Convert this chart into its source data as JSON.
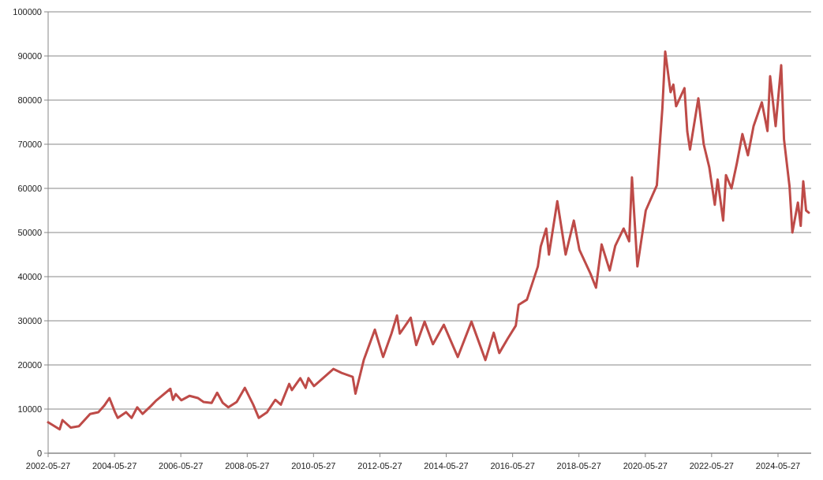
{
  "chart_data": {
    "type": "line",
    "xlim": [
      "2002-05-27",
      "2025-05-27"
    ],
    "xticks": [
      "2002-05-27",
      "2004-05-27",
      "2006-05-27",
      "2008-05-27",
      "2010-05-27",
      "2012-05-27",
      "2014-05-27",
      "2016-05-27",
      "2018-05-27",
      "2020-05-27",
      "2022-05-27",
      "2024-05-27"
    ],
    "ylim": [
      0,
      100000
    ],
    "yticks": [
      0,
      10000,
      20000,
      30000,
      40000,
      50000,
      60000,
      70000,
      80000,
      90000,
      100000
    ],
    "grid": "y",
    "marker": "none",
    "line_style": "solid",
    "x": [
      "2002-05-27",
      "2002-10",
      "2002-11",
      "2003-02",
      "2003-05",
      "2003-09",
      "2003-12",
      "2004-02",
      "2004-04",
      "2004-06",
      "2004-07",
      "2004-10",
      "2004-12",
      "2005-02",
      "2005-04",
      "2005-07",
      "2005-09",
      "2006-02",
      "2006-03",
      "2006-04",
      "2006-06",
      "2006-09",
      "2006-12",
      "2007-02",
      "2007-05",
      "2007-07",
      "2007-09",
      "2007-11",
      "2008-02",
      "2008-05",
      "2008-08",
      "2008-10",
      "2009-01",
      "2009-04",
      "2009-06",
      "2009-09",
      "2009-10",
      "2010-01",
      "2010-03",
      "2010-04",
      "2010-06",
      "2011-01",
      "2011-04",
      "2011-08",
      "2011-09",
      "2011-12",
      "2012-04",
      "2012-07",
      "2012-10",
      "2012-12",
      "2013-01",
      "2013-05",
      "2013-07",
      "2013-10",
      "2014-01",
      "2014-05",
      "2014-10",
      "2015-03",
      "2015-08",
      "2015-11",
      "2016-01",
      "2016-04",
      "2016-07",
      "2016-08",
      "2016-11",
      "2017-03",
      "2017-04",
      "2017-06",
      "2017-07",
      "2017-10",
      "2018-01",
      "2018-04",
      "2018-06",
      "2018-10",
      "2018-12",
      "2019-02",
      "2019-05",
      "2019-07",
      "2019-10",
      "2019-12",
      "2020-01",
      "2020-03",
      "2020-06",
      "2020-10",
      "2020-12",
      "2021-01",
      "2021-03",
      "2021-04",
      "2021-05",
      "2021-08",
      "2021-09",
      "2021-10",
      "2022-01",
      "2022-03",
      "2022-05",
      "2022-07",
      "2022-08",
      "2022-10",
      "2022-11",
      "2023-01",
      "2023-03",
      "2023-05",
      "2023-07",
      "2023-09",
      "2023-12",
      "2024-02",
      "2024-03",
      "2024-05",
      "2024-07",
      "2024-08",
      "2024-10",
      "2024-11",
      "2025-01",
      "2025-02",
      "2025-03",
      "2025-04",
      "2025-05"
    ],
    "series": [
      {
        "color": "#be4b48",
        "values": [
          7000,
          5400,
          7500,
          5800,
          6100,
          8900,
          9300,
          10700,
          12500,
          9300,
          8000,
          9300,
          8000,
          10400,
          8900,
          10700,
          12000,
          14600,
          12100,
          13400,
          12000,
          13000,
          12500,
          11600,
          11400,
          13700,
          11400,
          10400,
          11600,
          14800,
          11000,
          8000,
          9300,
          12100,
          11000,
          15700,
          14300,
          17000,
          14800,
          17000,
          15200,
          19100,
          18200,
          17300,
          13500,
          21100,
          28000,
          21800,
          27100,
          31200,
          27100,
          30700,
          24500,
          29800,
          24700,
          29100,
          21800,
          29800,
          21100,
          27300,
          22700,
          25900,
          28900,
          33600,
          34800,
          42300,
          46800,
          50900,
          45000,
          57100,
          45000,
          52700,
          46100,
          40700,
          37500,
          47300,
          41400,
          47000,
          50900,
          48000,
          62500,
          42300,
          55000,
          60700,
          78200,
          91000,
          81800,
          83500,
          78600,
          82700,
          72900,
          68800,
          80400,
          70000,
          64800,
          56300,
          62000,
          52700,
          63000,
          60000,
          65700,
          72300,
          67500,
          74100,
          79500,
          73000,
          85400,
          74100,
          87900,
          71100,
          60400,
          50000,
          56800,
          51500,
          61600,
          55000,
          54500
        ]
      }
    ]
  }
}
